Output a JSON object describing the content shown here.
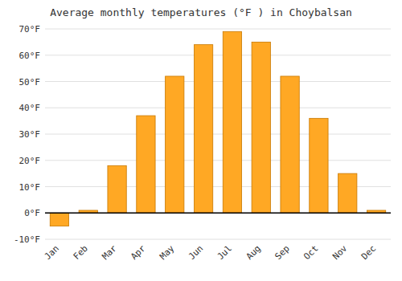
{
  "chart_data": {
    "type": "bar",
    "title": "Average monthly temperatures (°F ) in Choybalsan",
    "categories": [
      "Jan",
      "Feb",
      "Mar",
      "Apr",
      "May",
      "Jun",
      "Jul",
      "Aug",
      "Sep",
      "Oct",
      "Nov",
      "Dec"
    ],
    "values": [
      -5,
      1,
      18,
      37,
      52,
      64,
      69,
      65,
      52,
      36,
      15,
      1
    ],
    "color": "#FFA824",
    "ylim": [
      -10,
      70
    ],
    "yticks": [
      {
        "value": -10,
        "label": "-10°F"
      },
      {
        "value": 0,
        "label": "0°F"
      },
      {
        "value": 10,
        "label": "10°F"
      },
      {
        "value": 20,
        "label": "20°F"
      },
      {
        "value": 30,
        "label": "30°F"
      },
      {
        "value": 40,
        "label": "40°F"
      },
      {
        "value": 50,
        "label": "50°F"
      },
      {
        "value": 60,
        "label": "60°F"
      },
      {
        "value": 70,
        "label": "70°F"
      }
    ],
    "grid": true
  }
}
